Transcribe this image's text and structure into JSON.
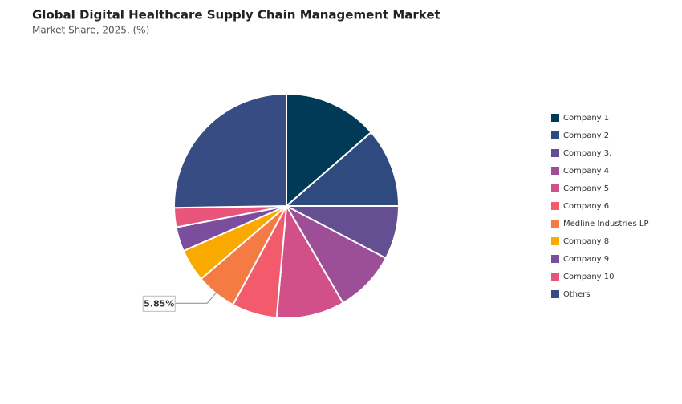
{
  "chart_data": {
    "type": "pie",
    "title": "Global Digital Healthcare Supply Chain Management Market",
    "subtitle": "Market Share, 2025, (%)",
    "categories": [
      "Company 1",
      "Company 2",
      "Company 3.",
      "Company 4",
      "Company 5",
      "Company 6",
      "Medline Industries LP",
      "Company 8",
      "Company 9",
      "Company 10",
      "Others"
    ],
    "values": [
      13.6,
      11.4,
      7.7,
      8.9,
      9.8,
      6.5,
      5.85,
      4.7,
      3.5,
      2.8,
      25.25
    ],
    "value_labels": [
      null,
      null,
      null,
      null,
      null,
      null,
      "5.85%",
      null,
      null,
      null,
      null
    ],
    "colors": [
      "#003a57",
      "#2f4a7e",
      "#634f91",
      "#9c4f97",
      "#d1508a",
      "#f15b6c",
      "#f47c44",
      "#f9a900",
      "#7a4e9c",
      "#e9557a",
      "#374c82"
    ],
    "legend": "right"
  }
}
